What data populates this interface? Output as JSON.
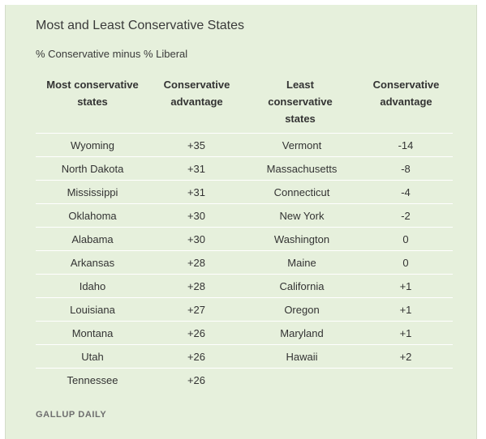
{
  "chart_data": {
    "type": "table",
    "title": "Most and Least Conservative States",
    "subtitle": "% Conservative minus % Liberal",
    "columns": [
      "Most conservative\nstates",
      "Conservative\nadvantage",
      "Least\nconservative\nstates",
      "Conservative\nadvantage"
    ],
    "rows": [
      [
        "Wyoming",
        "+35",
        "Vermont",
        "-14"
      ],
      [
        "North Dakota",
        "+31",
        "Massachusetts",
        "-8"
      ],
      [
        "Mississippi",
        "+31",
        "Connecticut",
        "-4"
      ],
      [
        "Oklahoma",
        "+30",
        "New York",
        "-2"
      ],
      [
        "Alabama",
        "+30",
        "Washington",
        "0"
      ],
      [
        "Arkansas",
        "+28",
        "Maine",
        "0"
      ],
      [
        "Idaho",
        "+28",
        "California",
        "+1"
      ],
      [
        "Louisiana",
        "+27",
        "Oregon",
        "+1"
      ],
      [
        "Montana",
        "+26",
        "Maryland",
        "+1"
      ],
      [
        "Utah",
        "+26",
        "Hawaii",
        "+2"
      ],
      [
        "Tennessee",
        "+26",
        "",
        ""
      ]
    ],
    "source": "GALLUP DAILY"
  },
  "colors": {
    "panel_background": "#e6f0dc",
    "divider": "#ffffff",
    "text": "#333333"
  }
}
